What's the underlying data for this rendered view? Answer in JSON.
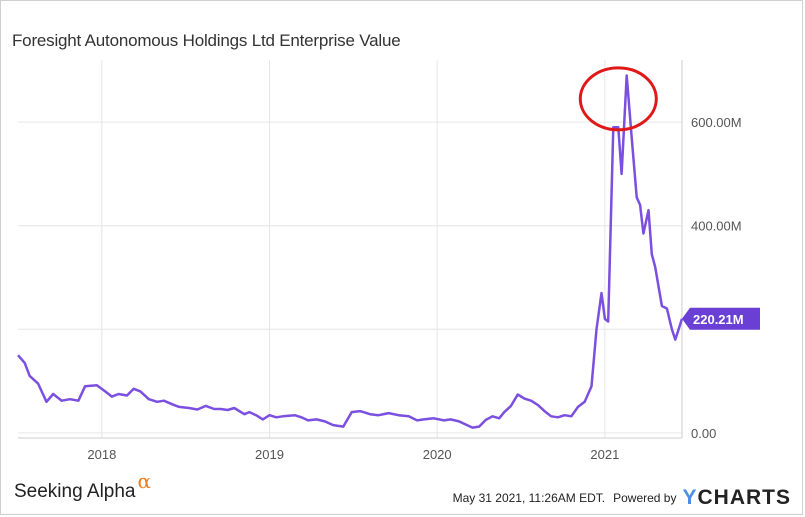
{
  "title": "Foresight Autonomous Holdings Ltd Enterprise Value",
  "footer": {
    "logo_text": "Seeking Alpha",
    "logo_symbol": "α",
    "timestamp": "May 31 2021, 11:26AM EDT.",
    "powered_by": "Powered by",
    "ycharts_y": "Y",
    "ycharts_rest": "CHARTS"
  },
  "colors": {
    "line": "#7b4fe0",
    "annotation": "#e01818",
    "grid": "#e6e6e6",
    "badge": "#6a3fd6",
    "logo_alpha": "#f07a1e",
    "ycharts_y": "#4a90e2"
  },
  "chart_data": {
    "type": "line",
    "title": "Foresight Autonomous Holdings Ltd Enterprise Value",
    "series": [
      {
        "name": "",
        "points": [
          [
            2017.5,
            150
          ],
          [
            2017.54,
            135
          ],
          [
            2017.57,
            110
          ],
          [
            2017.62,
            95
          ],
          [
            2017.67,
            60
          ],
          [
            2017.71,
            75
          ],
          [
            2017.76,
            62
          ],
          [
            2017.81,
            65
          ],
          [
            2017.86,
            62
          ],
          [
            2017.9,
            90
          ],
          [
            2017.97,
            92
          ],
          [
            2018.02,
            80
          ],
          [
            2018.06,
            70
          ],
          [
            2018.1,
            75
          ],
          [
            2018.15,
            72
          ],
          [
            2018.19,
            85
          ],
          [
            2018.23,
            80
          ],
          [
            2018.28,
            65
          ],
          [
            2018.33,
            60
          ],
          [
            2018.37,
            62
          ],
          [
            2018.42,
            55
          ],
          [
            2018.46,
            50
          ],
          [
            2018.52,
            48
          ],
          [
            2018.57,
            45
          ],
          [
            2018.62,
            52
          ],
          [
            2018.67,
            46
          ],
          [
            2018.71,
            46
          ],
          [
            2018.75,
            44
          ],
          [
            2018.79,
            48
          ],
          [
            2018.85,
            36
          ],
          [
            2018.88,
            40
          ],
          [
            2018.92,
            34
          ],
          [
            2018.96,
            26
          ],
          [
            2019.0,
            34
          ],
          [
            2019.04,
            30
          ],
          [
            2019.08,
            32
          ],
          [
            2019.15,
            34
          ],
          [
            2019.19,
            30
          ],
          [
            2019.23,
            24
          ],
          [
            2019.28,
            26
          ],
          [
            2019.33,
            22
          ],
          [
            2019.38,
            15
          ],
          [
            2019.44,
            12
          ],
          [
            2019.49,
            40
          ],
          [
            2019.54,
            42
          ],
          [
            2019.6,
            36
          ],
          [
            2019.65,
            34
          ],
          [
            2019.71,
            38
          ],
          [
            2019.77,
            34
          ],
          [
            2019.83,
            32
          ],
          [
            2019.88,
            24
          ],
          [
            2019.92,
            26
          ],
          [
            2019.98,
            28
          ],
          [
            2020.04,
            24
          ],
          [
            2020.08,
            26
          ],
          [
            2020.13,
            22
          ],
          [
            2020.17,
            16
          ],
          [
            2020.21,
            10
          ],
          [
            2020.25,
            12
          ],
          [
            2020.29,
            25
          ],
          [
            2020.33,
            32
          ],
          [
            2020.37,
            28
          ],
          [
            2020.4,
            40
          ],
          [
            2020.44,
            52
          ],
          [
            2020.48,
            74
          ],
          [
            2020.52,
            66
          ],
          [
            2020.56,
            62
          ],
          [
            2020.6,
            54
          ],
          [
            2020.64,
            42
          ],
          [
            2020.68,
            32
          ],
          [
            2020.72,
            30
          ],
          [
            2020.76,
            34
          ],
          [
            2020.8,
            32
          ],
          [
            2020.84,
            50
          ],
          [
            2020.88,
            60
          ],
          [
            2020.92,
            90
          ],
          [
            2020.95,
            200
          ],
          [
            2020.98,
            270
          ],
          [
            2021.0,
            220
          ],
          [
            2021.02,
            215
          ],
          [
            2021.05,
            590
          ],
          [
            2021.08,
            590
          ],
          [
            2021.1,
            500
          ],
          [
            2021.13,
            690
          ],
          [
            2021.16,
            570
          ],
          [
            2021.19,
            455
          ],
          [
            2021.21,
            440
          ],
          [
            2021.23,
            385
          ],
          [
            2021.26,
            430
          ],
          [
            2021.28,
            345
          ],
          [
            2021.3,
            320
          ],
          [
            2021.34,
            245
          ],
          [
            2021.37,
            240
          ],
          [
            2021.4,
            200
          ],
          [
            2021.42,
            180
          ],
          [
            2021.46,
            220.21
          ]
        ]
      }
    ],
    "xlim": [
      2017.5,
      2021.46
    ],
    "ylim": [
      -10,
      720
    ],
    "x_ticks": [
      {
        "value": 2018,
        "label": "2018"
      },
      {
        "value": 2019,
        "label": "2019"
      },
      {
        "value": 2020,
        "label": "2020"
      },
      {
        "value": 2021,
        "label": "2021"
      }
    ],
    "y_ticks": [
      {
        "value": 0,
        "label": "0.00"
      },
      {
        "value": 200,
        "label": ""
      },
      {
        "value": 400,
        "label": "400.00M"
      },
      {
        "value": 600,
        "label": "600.00M"
      }
    ],
    "last_value": 220.21,
    "last_value_label": "220.21M",
    "grid": true,
    "annotation": {
      "type": "circle",
      "x": 2021.08,
      "y": 645
    }
  }
}
